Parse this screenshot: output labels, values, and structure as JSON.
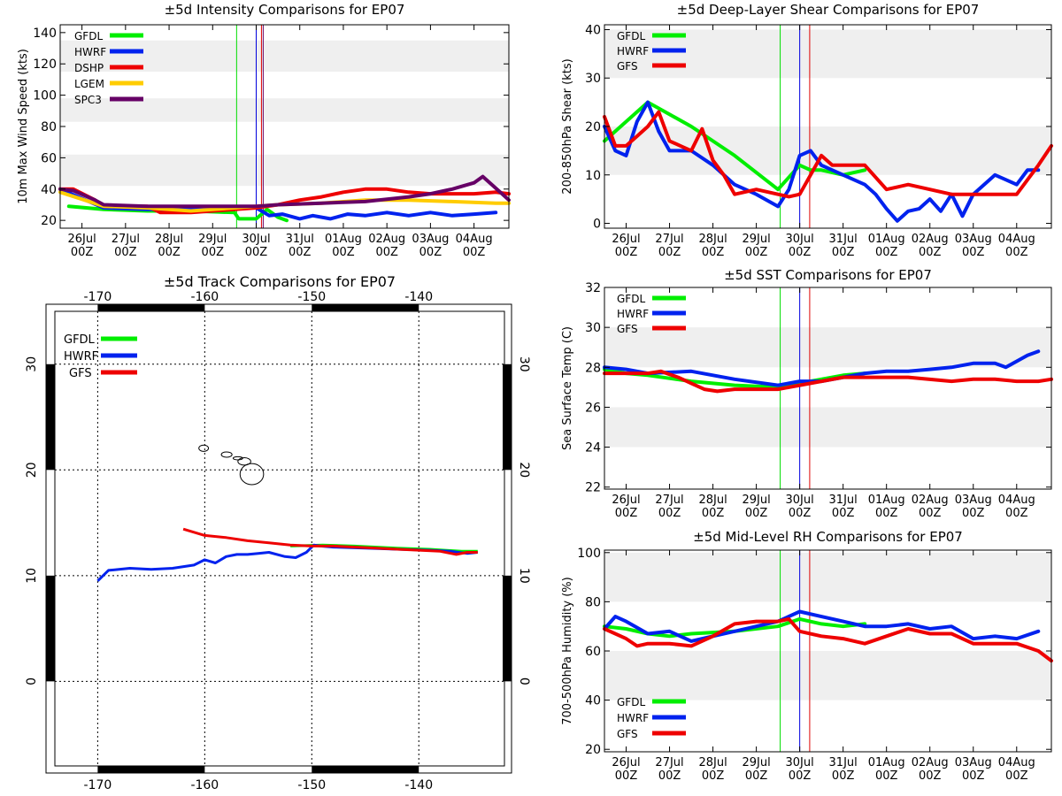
{
  "date_ticks": {
    "day": [
      "26Jul",
      "27Jul",
      "28Jul",
      "29Jul",
      "30Jul",
      "31Jul",
      "01Aug",
      "02Aug",
      "03Aug",
      "04Aug"
    ],
    "hour": [
      "00Z",
      "00Z",
      "00Z",
      "00Z",
      "00Z",
      "00Z",
      "00Z",
      "00Z",
      "00Z",
      "00Z"
    ]
  },
  "chart_data": [
    {
      "id": "intensity",
      "type": "line",
      "title": "±5d Intensity Comparisons for EP07",
      "ylabel": "10m Max Wind Speed (kts)",
      "xlabel": "",
      "xlim": [
        0,
        10.3
      ],
      "ylim": [
        15,
        145
      ],
      "yticks": [
        20,
        40,
        60,
        80,
        100,
        120,
        140
      ],
      "bands": [
        [
          42,
          62
        ],
        [
          83,
          98
        ],
        [
          115,
          135
        ]
      ],
      "vlines": [
        {
          "x": 4.05,
          "color": "#00dd00"
        },
        {
          "x": 4.5,
          "color": "#0000dd"
        },
        {
          "x": 4.62,
          "color": "#dd0000"
        },
        {
          "x": 4.66,
          "color": "#660066"
        }
      ],
      "legend": [
        {
          "label": "GFDL",
          "color": "#00ee00"
        },
        {
          "label": "HWRF",
          "color": "#0022ee"
        },
        {
          "label": "DSHP",
          "color": "#ee0000"
        },
        {
          "label": "LGEM",
          "color": "#ffcc00"
        },
        {
          "label": "SPC3",
          "color": "#660066"
        }
      ],
      "series": [
        {
          "name": "GFDL",
          "color": "#00ee00",
          "x": [
            0.2,
            1,
            2,
            3,
            4,
            4.1,
            4.5,
            4.75,
            5.0,
            5.2
          ],
          "y": [
            29,
            27,
            26,
            26,
            25,
            21,
            21,
            27,
            22,
            20
          ]
        },
        {
          "name": "HWRF",
          "color": "#0022ee",
          "x": [
            0,
            0.5,
            1,
            2,
            3,
            4,
            4.5,
            4.8,
            5.1,
            5.5,
            5.8,
            6.2,
            6.6,
            7,
            7.5,
            8,
            8.5,
            9,
            9.5,
            10
          ],
          "y": [
            40,
            34,
            28,
            27,
            27,
            28,
            28,
            23,
            24,
            21,
            23,
            21,
            24,
            23,
            25,
            23,
            25,
            23,
            24,
            25
          ]
        },
        {
          "name": "DSHP",
          "color": "#ee0000",
          "x": [
            0,
            0.3,
            0.8,
            1,
            2,
            2.3,
            3,
            4,
            4.5,
            5,
            5.5,
            6,
            6.5,
            7,
            7.5,
            8,
            8.5,
            9,
            9.5,
            10,
            10.3
          ],
          "y": [
            40,
            40,
            33,
            29,
            29,
            25,
            25,
            27,
            28,
            30,
            33,
            35,
            38,
            40,
            40,
            38,
            37,
            37,
            37,
            38,
            37
          ]
        },
        {
          "name": "LGEM",
          "color": "#ffcc00",
          "x": [
            0,
            1,
            2,
            3,
            4,
            4.5,
            5,
            6,
            7,
            8,
            9,
            10,
            10.3
          ],
          "y": [
            38,
            29,
            28,
            26,
            28,
            29,
            30,
            31,
            33,
            33,
            32,
            31,
            31
          ]
        },
        {
          "name": "SPC3",
          "color": "#660066",
          "x": [
            0,
            0.3,
            0.8,
            1,
            2,
            3,
            4,
            4.5,
            5,
            6,
            7,
            8,
            8.5,
            9,
            9.5,
            9.7,
            10.1,
            10.3
          ],
          "y": [
            40,
            39,
            33,
            30,
            29,
            29,
            29,
            29,
            30,
            31,
            32,
            35,
            37,
            40,
            44,
            48,
            38,
            33
          ]
        }
      ]
    },
    {
      "id": "shear",
      "type": "line",
      "title": "±5d Deep-Layer Shear Comparisons for EP07",
      "ylabel": "200-850hPa Shear (kts)",
      "xlabel": "",
      "xlim": [
        0,
        10.3
      ],
      "ylim": [
        -1,
        41
      ],
      "yticks": [
        0,
        10,
        20,
        30,
        40
      ],
      "bands": [
        [
          10,
          20
        ],
        [
          30,
          40
        ]
      ],
      "vlines": [
        {
          "x": 4.05,
          "color": "#00dd00"
        },
        {
          "x": 4.5,
          "color": "#0000dd"
        },
        {
          "x": 4.73,
          "color": "#dd0000"
        }
      ],
      "legend": [
        {
          "label": "GFDL",
          "color": "#00ee00"
        },
        {
          "label": "HWRF",
          "color": "#0022ee"
        },
        {
          "label": "GFS",
          "color": "#ee0000"
        }
      ],
      "series": [
        {
          "name": "GFDL",
          "color": "#00ee00",
          "x": [
            0,
            1,
            2,
            3,
            4,
            4.5,
            4.75,
            5,
            5.5,
            6
          ],
          "y": [
            17,
            25,
            20,
            14,
            7,
            12,
            11,
            11,
            10,
            11
          ]
        },
        {
          "name": "HWRF",
          "color": "#0022ee",
          "x": [
            0,
            0.25,
            0.5,
            0.75,
            1,
            1.25,
            1.5,
            2,
            2.5,
            3,
            3.5,
            4,
            4.25,
            4.5,
            4.75,
            5,
            5.5,
            6,
            6.25,
            6.5,
            6.75,
            7,
            7.25,
            7.5,
            7.75,
            8,
            8.25,
            8.5,
            8.75,
            9,
            9.25,
            9.5,
            9.75,
            10
          ],
          "y": [
            20,
            15,
            14,
            21,
            25,
            19,
            15,
            15,
            12,
            8,
            6,
            3.5,
            7,
            14,
            15,
            12,
            10,
            8,
            6,
            3,
            0.5,
            2.5,
            3,
            5,
            2.5,
            6,
            1.5,
            6,
            8,
            10,
            9,
            8,
            11,
            11
          ]
        },
        {
          "name": "GFS",
          "color": "#ee0000",
          "x": [
            0,
            0.25,
            0.5,
            0.75,
            1,
            1.25,
            1.5,
            1.75,
            2,
            2.25,
            2.5,
            2.75,
            3,
            3.5,
            4,
            4.25,
            4.5,
            4.75,
            5,
            5.25,
            5.5,
            5.75,
            6,
            6.5,
            7,
            7.5,
            8,
            8.5,
            9,
            9.5,
            10,
            10.3
          ],
          "y": [
            22,
            16,
            16,
            18,
            20,
            23,
            17,
            16,
            15,
            19.5,
            13,
            10,
            6,
            7,
            6,
            5.5,
            6,
            10,
            14,
            12,
            12,
            12,
            12,
            7,
            8,
            7,
            6,
            6,
            6,
            6,
            12,
            16
          ]
        }
      ]
    },
    {
      "id": "track",
      "type": "line",
      "title": "±5d Track Comparisons for EP07",
      "xlabel": "",
      "ylabel": "",
      "xlim": [
        -174,
        -132
      ],
      "ylim": [
        -8,
        35
      ],
      "xticks": [
        -170,
        -160,
        -150,
        -140
      ],
      "yticks": [
        0,
        10,
        20,
        30
      ],
      "legend": [
        {
          "label": "GFDL",
          "color": "#00ee00"
        },
        {
          "label": "HWRF",
          "color": "#0022ee"
        },
        {
          "label": "GFS",
          "color": "#ee0000"
        }
      ],
      "series": [
        {
          "name": "GFDL",
          "color": "#00ee00",
          "x": [
            -152,
            -149,
            -146,
            -142,
            -139,
            -136,
            -134.5
          ],
          "y": [
            12.8,
            12.9,
            12.8,
            12.6,
            12.5,
            12.3,
            12.3
          ]
        },
        {
          "name": "HWRF",
          "color": "#0022ee",
          "x": [
            -170,
            -169,
            -167,
            -165,
            -163,
            -161,
            -160,
            -159,
            -158,
            -157,
            -156,
            -155,
            -154,
            -152.5,
            -151.5,
            -150.5,
            -149.8,
            -149.2,
            -148,
            -145,
            -142,
            -139,
            -137,
            -135.5,
            -134.5
          ],
          "y": [
            9.5,
            10.5,
            10.7,
            10.6,
            10.7,
            11,
            11.5,
            11.2,
            11.8,
            12,
            12,
            12.1,
            12.2,
            11.8,
            11.7,
            12.2,
            12.9,
            12.8,
            12.7,
            12.6,
            12.5,
            12.4,
            12.3,
            12.1,
            12.2
          ]
        },
        {
          "name": "GFS",
          "color": "#ee0000",
          "x": [
            -162,
            -160,
            -158,
            -156,
            -154,
            -152,
            -150,
            -148,
            -146,
            -144,
            -142,
            -140,
            -138,
            -136.5,
            -135.5,
            -134.5
          ],
          "y": [
            14.4,
            13.8,
            13.6,
            13.3,
            13.1,
            12.9,
            12.8,
            12.8,
            12.7,
            12.6,
            12.5,
            12.4,
            12.3,
            12,
            12.2,
            12.2
          ]
        }
      ]
    },
    {
      "id": "sst",
      "type": "line",
      "title": "±5d SST Comparisons for EP07",
      "ylabel": "Sea Surface Temp (C)",
      "xlabel": "",
      "xlim": [
        0,
        10.3
      ],
      "ylim": [
        21.9,
        32
      ],
      "yticks": [
        22,
        24,
        26,
        28,
        30,
        32
      ],
      "bands": [
        [
          24,
          26
        ],
        [
          28,
          30
        ]
      ],
      "vlines": [
        {
          "x": 4.05,
          "color": "#00dd00"
        },
        {
          "x": 4.5,
          "color": "#0000dd"
        },
        {
          "x": 4.73,
          "color": "#dd0000"
        }
      ],
      "legend": [
        {
          "label": "GFDL",
          "color": "#00ee00"
        },
        {
          "label": "HWRF",
          "color": "#0022ee"
        },
        {
          "label": "GFS",
          "color": "#ee0000"
        }
      ],
      "series": [
        {
          "name": "GFDL",
          "color": "#00ee00",
          "x": [
            0,
            0.5,
            1,
            2,
            3,
            4,
            4.5,
            5,
            5.5,
            6
          ],
          "y": [
            27.9,
            27.7,
            27.6,
            27.3,
            27.1,
            27,
            27.2,
            27.4,
            27.6,
            27.7
          ]
        },
        {
          "name": "HWRF",
          "color": "#0022ee",
          "x": [
            0,
            0.5,
            1,
            2,
            3,
            4,
            4.5,
            5,
            5.5,
            6,
            6.5,
            7,
            7.5,
            8,
            8.5,
            9,
            9.25,
            9.5,
            9.75,
            10
          ],
          "y": [
            28,
            27.9,
            27.7,
            27.8,
            27.4,
            27.1,
            27.3,
            27.3,
            27.5,
            27.7,
            27.8,
            27.8,
            27.9,
            28,
            28.2,
            28.2,
            28,
            28.3,
            28.6,
            28.8
          ]
        },
        {
          "name": "GFS",
          "color": "#ee0000",
          "x": [
            0,
            0.5,
            1,
            1.3,
            1.7,
            2,
            2.3,
            2.6,
            3,
            3.5,
            4,
            4.5,
            5,
            5.5,
            6,
            7,
            8,
            8.5,
            9,
            9.5,
            10,
            10.3
          ],
          "y": [
            27.7,
            27.7,
            27.7,
            27.8,
            27.5,
            27.2,
            26.9,
            26.8,
            26.9,
            26.9,
            26.9,
            27.1,
            27.3,
            27.5,
            27.5,
            27.5,
            27.3,
            27.4,
            27.4,
            27.3,
            27.3,
            27.4
          ]
        }
      ]
    },
    {
      "id": "rh",
      "type": "line",
      "title": "±5d Mid-Level RH Comparisons for EP07",
      "ylabel": "700-500hPa Humidity (%)",
      "xlabel": "",
      "xlim": [
        0,
        10.3
      ],
      "ylim": [
        19,
        101
      ],
      "yticks": [
        20,
        40,
        60,
        80,
        100
      ],
      "bands": [
        [
          40,
          60
        ],
        [
          80,
          100
        ]
      ],
      "vlines": [
        {
          "x": 4.05,
          "color": "#00dd00"
        },
        {
          "x": 4.5,
          "color": "#0000dd"
        },
        {
          "x": 4.73,
          "color": "#dd0000"
        }
      ],
      "legend": [
        {
          "label": "GFDL",
          "color": "#00ee00"
        },
        {
          "label": "HWRF",
          "color": "#0022ee"
        },
        {
          "label": "GFS",
          "color": "#ee0000"
        }
      ],
      "series": [
        {
          "name": "GFDL",
          "color": "#00ee00",
          "x": [
            0,
            0.5,
            1,
            1.5,
            2,
            3,
            4,
            4.5,
            5,
            5.5,
            6
          ],
          "y": [
            70,
            69,
            67,
            66,
            67,
            68,
            70,
            73,
            71,
            70,
            71
          ]
        },
        {
          "name": "HWRF",
          "color": "#0022ee",
          "x": [
            0,
            0.25,
            0.5,
            1,
            1.5,
            2,
            2.5,
            3,
            3.5,
            4,
            4.5,
            5,
            5.5,
            6,
            6.5,
            7,
            7.5,
            8,
            8.5,
            9,
            9.5,
            10
          ],
          "y": [
            69,
            74,
            72,
            67,
            68,
            64,
            66,
            68,
            70,
            72,
            76,
            74,
            72,
            70,
            70,
            71,
            69,
            70,
            65,
            66,
            65,
            68
          ]
        },
        {
          "name": "GFS",
          "color": "#ee0000",
          "x": [
            0,
            0.5,
            0.75,
            1,
            1.5,
            2,
            2.5,
            3,
            3.5,
            4,
            4.25,
            4.5,
            5,
            5.5,
            6,
            6.5,
            7,
            7.5,
            8,
            8.5,
            9,
            9.5,
            10,
            10.3
          ],
          "y": [
            69,
            65,
            62,
            63,
            63,
            62,
            66,
            71,
            72,
            72,
            73,
            68,
            66,
            65,
            63,
            66,
            69,
            67,
            67,
            63,
            63,
            63,
            60,
            56
          ]
        }
      ]
    }
  ]
}
